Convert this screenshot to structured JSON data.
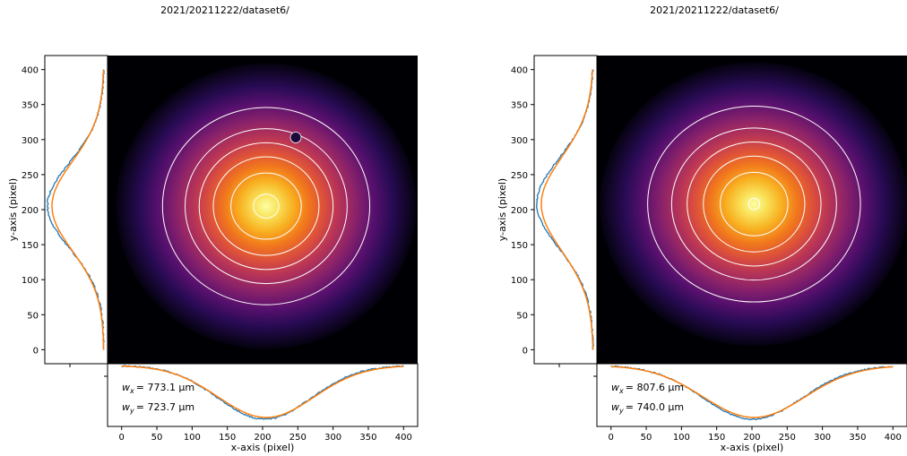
{
  "figure": {
    "panels": [
      {
        "title": "2021/20211222/dataset6/",
        "wx_label": "w",
        "wx_sub": "x",
        "wx_value": "= 773.1 μm",
        "wy_label": "w",
        "wy_sub": "y",
        "wy_value": "= 723.7 μm"
      },
      {
        "title": "2021/20211222/dataset6/",
        "wx_label": "w",
        "wx_sub": "x",
        "wx_value": "= 807.6 μm",
        "wy_label": "w",
        "wy_sub": "y",
        "wy_value": "= 740.0 μm"
      }
    ],
    "colors": {
      "data_line": "#1f77b4",
      "fit_line": "#ff7f0e",
      "contour": "#ffffff"
    }
  },
  "chart_data": [
    {
      "type": "heatmap",
      "title": "2021/20211222/dataset6/",
      "xlabel": "x-axis (pixel)",
      "ylabel": "y-axis (pixel)",
      "xlim": [
        -20,
        420
      ],
      "ylim": [
        -20,
        420
      ],
      "xticks": [
        0,
        50,
        100,
        150,
        200,
        250,
        300,
        350,
        400
      ],
      "yticks": [
        0,
        50,
        100,
        150,
        200,
        250,
        300,
        350,
        400
      ],
      "colormap": "inferno",
      "beam_center": [
        205,
        205
      ],
      "contour_radii_x": [
        18,
        50,
        75,
        95,
        115,
        147
      ],
      "contour_radii_y": [
        17,
        47,
        70,
        90,
        110,
        140
      ],
      "spot": [
        247,
        303
      ],
      "profile_x": {
        "series": [
          {
            "name": "",
            "values": "data"
          },
          {
            "name": "",
            "values": "fit"
          }
        ],
        "center": 205,
        "sigma": 68
      },
      "profile_y": {
        "series": [
          {
            "name": "",
            "values": "data"
          },
          {
            "name": "",
            "values": "fit"
          }
        ],
        "center": 205,
        "sigma": 64
      },
      "annotations": [
        "w_x = 773.1 μm",
        "w_y = 723.7 μm"
      ]
    },
    {
      "type": "heatmap",
      "title": "2021/20211222/dataset6/",
      "xlabel": "x-axis (pixel)",
      "ylabel": "y-axis (pixel)",
      "xlim": [
        -20,
        420
      ],
      "ylim": [
        -20,
        420
      ],
      "xticks": [
        0,
        50,
        100,
        150,
        200,
        250,
        300,
        350,
        400
      ],
      "yticks": [
        0,
        50,
        100,
        150,
        200,
        250,
        300,
        350,
        400
      ],
      "colormap": "inferno",
      "beam_center": [
        203,
        208
      ],
      "contour_radii_x": [
        8,
        48,
        72,
        95,
        117,
        151
      ],
      "contour_radii_y": [
        8,
        45,
        68,
        88,
        108,
        139
      ],
      "spot": null,
      "profile_x": {
        "series": [
          {
            "name": "",
            "values": "data"
          },
          {
            "name": "",
            "values": "fit"
          }
        ],
        "center": 203,
        "sigma": 72
      },
      "profile_y": {
        "series": [
          {
            "name": "",
            "values": "data"
          },
          {
            "name": "",
            "values": "fit"
          }
        ],
        "center": 208,
        "sigma": 67
      },
      "annotations": [
        "w_x = 807.6 μm",
        "w_y = 740.0 μm"
      ]
    }
  ]
}
